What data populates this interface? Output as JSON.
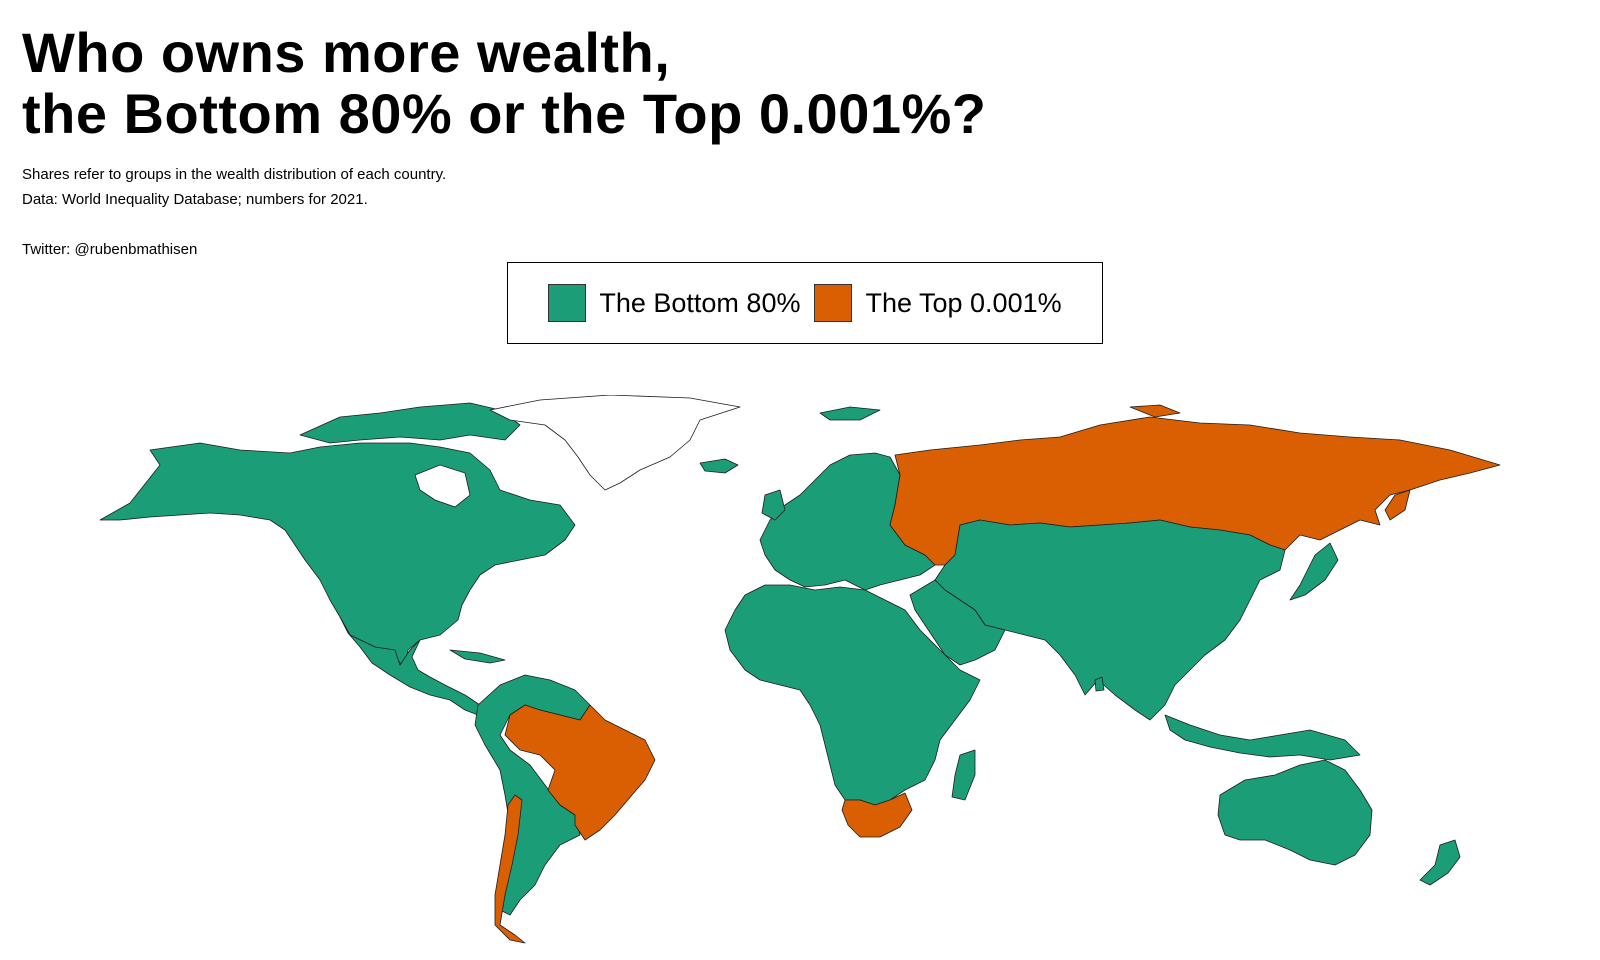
{
  "title": {
    "line1": "Who owns more wealth,",
    "line2": "the Bottom 80% or the Top 0.001%?"
  },
  "notes": {
    "line1": "Shares refer to groups in the wealth distribution of each country.",
    "line2": "Data: World Inequality Database; numbers for 2021.",
    "line3": "Twitter: @rubenbmathisen"
  },
  "legend": {
    "bottom80": {
      "label": "The Bottom 80%",
      "color": "#1b9e77"
    },
    "top0001": {
      "label": "The Top 0.001%",
      "color": "#d95f02"
    }
  },
  "colors": {
    "no_data": "#ffffff",
    "border": "#1d1d1d"
  },
  "map_data": {
    "type": "choropleth",
    "categories": [
      "The Bottom 80%",
      "The Top 0.001%"
    ],
    "top_0001_countries": [
      "Russia",
      "Brazil",
      "Chile",
      "South Africa"
    ],
    "no_data_regions": [
      "Greenland"
    ],
    "all_other_countries": "The Bottom 80%"
  }
}
